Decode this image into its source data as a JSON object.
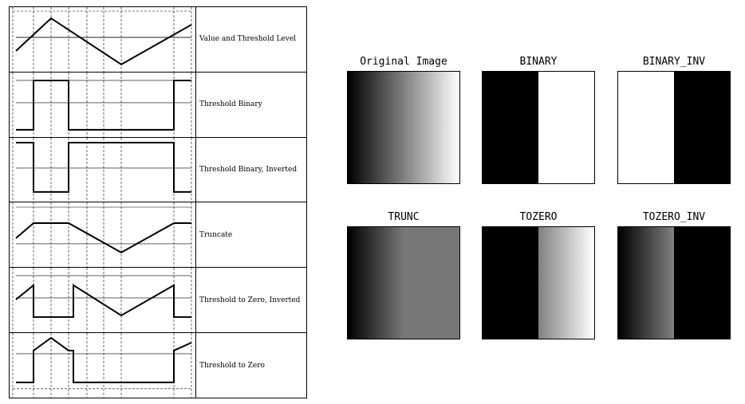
{
  "left_panel": {
    "rows": [
      {
        "label": "Value and Threshold Level"
      },
      {
        "label": "Threshold Binary"
      },
      {
        "label": "Threshold Binary, Inverted"
      },
      {
        "label": "Truncate"
      },
      {
        "label": "Threshold to Zero, Inverted"
      },
      {
        "label": "Threshold to Zero"
      }
    ]
  },
  "right_panel": {
    "images": [
      {
        "title": "Original Image",
        "gradient": "linear-gradient(to right, #000000 0%, #ffffff 100%)"
      },
      {
        "title": "BINARY",
        "gradient": "linear-gradient(to right, #000000 0%, #000000 50%, #ffffff 50%, #ffffff 100%)"
      },
      {
        "title": "BINARY_INV",
        "gradient": "linear-gradient(to right, #ffffff 0%, #ffffff 50%, #000000 50%, #000000 100%)"
      },
      {
        "title": "TRUNC",
        "gradient": "linear-gradient(to right, #000000 0%, #777777 50%, #777777 100%)"
      },
      {
        "title": "TOZERO",
        "gradient": "linear-gradient(to right, #000000 0%, #000000 50%, #808080 50%, #ffffff 100%)"
      },
      {
        "title": "TOZERO_INV",
        "gradient": "linear-gradient(to right, #000000 0%, #808080 50%, #000000 50%, #000000 100%)"
      }
    ]
  }
}
